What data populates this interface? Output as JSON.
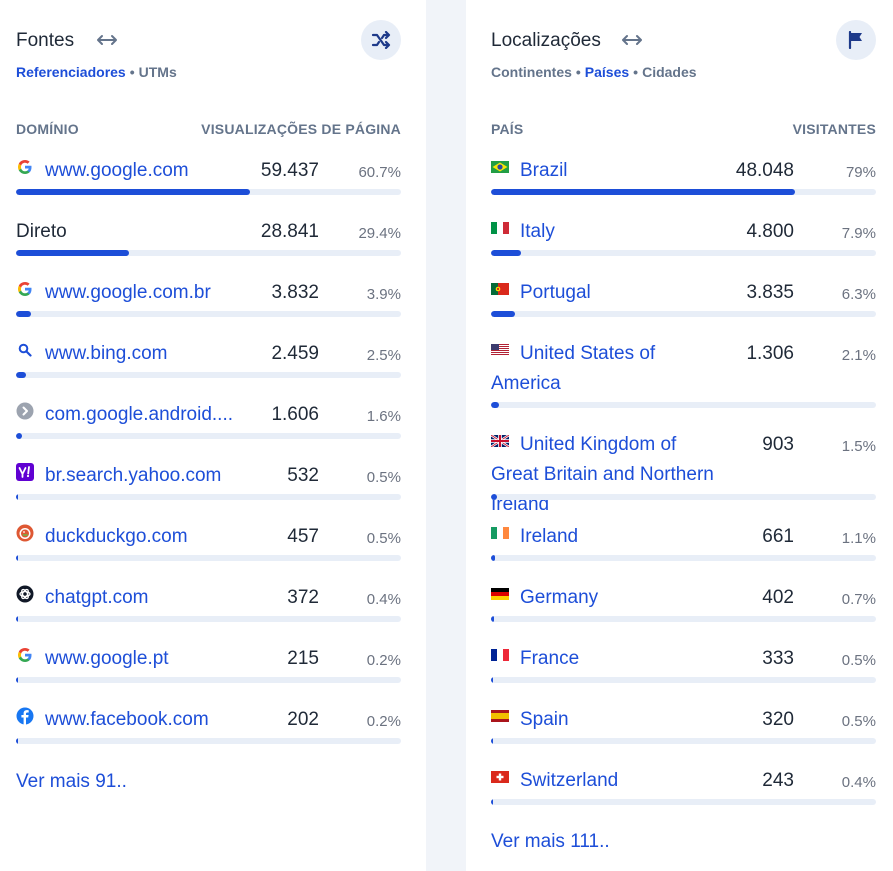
{
  "sources": {
    "title": "Fontes",
    "tabs": [
      {
        "label": "Referenciadores",
        "active": true
      },
      {
        "label": "UTMs",
        "active": false
      }
    ],
    "col_left": "DOMÍNIO",
    "col_right": "VISUALIZAÇÕES DE PÁGINA",
    "rows": [
      {
        "name": "www.google.com",
        "icon": "google-icon",
        "value": "59.437",
        "pct": "60.7%",
        "share": 0.607
      },
      {
        "name": "Direto",
        "icon": "",
        "value": "28.841",
        "pct": "29.4%",
        "share": 0.294
      },
      {
        "name": "www.google.com.br",
        "icon": "google-icon",
        "value": "3.832",
        "pct": "3.9%",
        "share": 0.039
      },
      {
        "name": "www.bing.com",
        "icon": "bing-search-icon",
        "value": "2.459",
        "pct": "2.5%",
        "share": 0.025
      },
      {
        "name": "com.google.android....",
        "icon": "android-app-icon",
        "value": "1.606",
        "pct": "1.6%",
        "share": 0.016
      },
      {
        "name": "br.search.yahoo.com",
        "icon": "yahoo-icon",
        "value": "532",
        "pct": "0.5%",
        "share": 0.005
      },
      {
        "name": "duckduckgo.com",
        "icon": "duckduckgo-icon",
        "value": "457",
        "pct": "0.5%",
        "share": 0.005
      },
      {
        "name": "chatgpt.com",
        "icon": "chatgpt-icon",
        "value": "372",
        "pct": "0.4%",
        "share": 0.004
      },
      {
        "name": "www.google.pt",
        "icon": "google-icon",
        "value": "215",
        "pct": "0.2%",
        "share": 0.002
      },
      {
        "name": "www.facebook.com",
        "icon": "facebook-icon",
        "value": "202",
        "pct": "0.2%",
        "share": 0.002
      }
    ],
    "more": "Ver mais 91.."
  },
  "locations": {
    "title": "Localizações",
    "tabs": [
      {
        "label": "Continentes",
        "active": false
      },
      {
        "label": "Países",
        "active": true
      },
      {
        "label": "Cidades",
        "active": false
      }
    ],
    "col_left": "PAÍS",
    "col_right": "VISITANTES",
    "rows": [
      {
        "name": "Brazil",
        "flag": "brazil-flag-icon",
        "value": "48.048",
        "pct": "79%",
        "share": 0.79
      },
      {
        "name": "Italy",
        "flag": "italy-flag-icon",
        "value": "4.800",
        "pct": "7.9%",
        "share": 0.079
      },
      {
        "name": "Portugal",
        "flag": "portugal-flag-icon",
        "value": "3.835",
        "pct": "6.3%",
        "share": 0.063
      },
      {
        "name": "United States of America",
        "flag": "usa-flag-icon",
        "value": "1.306",
        "pct": "2.1%",
        "share": 0.021
      },
      {
        "name": "United Kingdom of Great Britain and Northern Ireland",
        "flag": "uk-flag-icon",
        "value": "903",
        "pct": "1.5%",
        "share": 0.015
      },
      {
        "name": "Ireland",
        "flag": "ireland-flag-icon",
        "value": "661",
        "pct": "1.1%",
        "share": 0.011
      },
      {
        "name": "Germany",
        "flag": "germany-flag-icon",
        "value": "402",
        "pct": "0.7%",
        "share": 0.007
      },
      {
        "name": "France",
        "flag": "france-flag-icon",
        "value": "333",
        "pct": "0.5%",
        "share": 0.005
      },
      {
        "name": "Spain",
        "flag": "spain-flag-icon",
        "value": "320",
        "pct": "0.5%",
        "share": 0.005
      },
      {
        "name": "Switzerland",
        "flag": "switzerland-flag-icon",
        "value": "243",
        "pct": "0.4%",
        "share": 0.004
      }
    ],
    "more": "Ver mais 111.."
  },
  "colors": {
    "accent": "#1d4ed8",
    "muted": "#64748b",
    "track": "#e8eef7"
  }
}
